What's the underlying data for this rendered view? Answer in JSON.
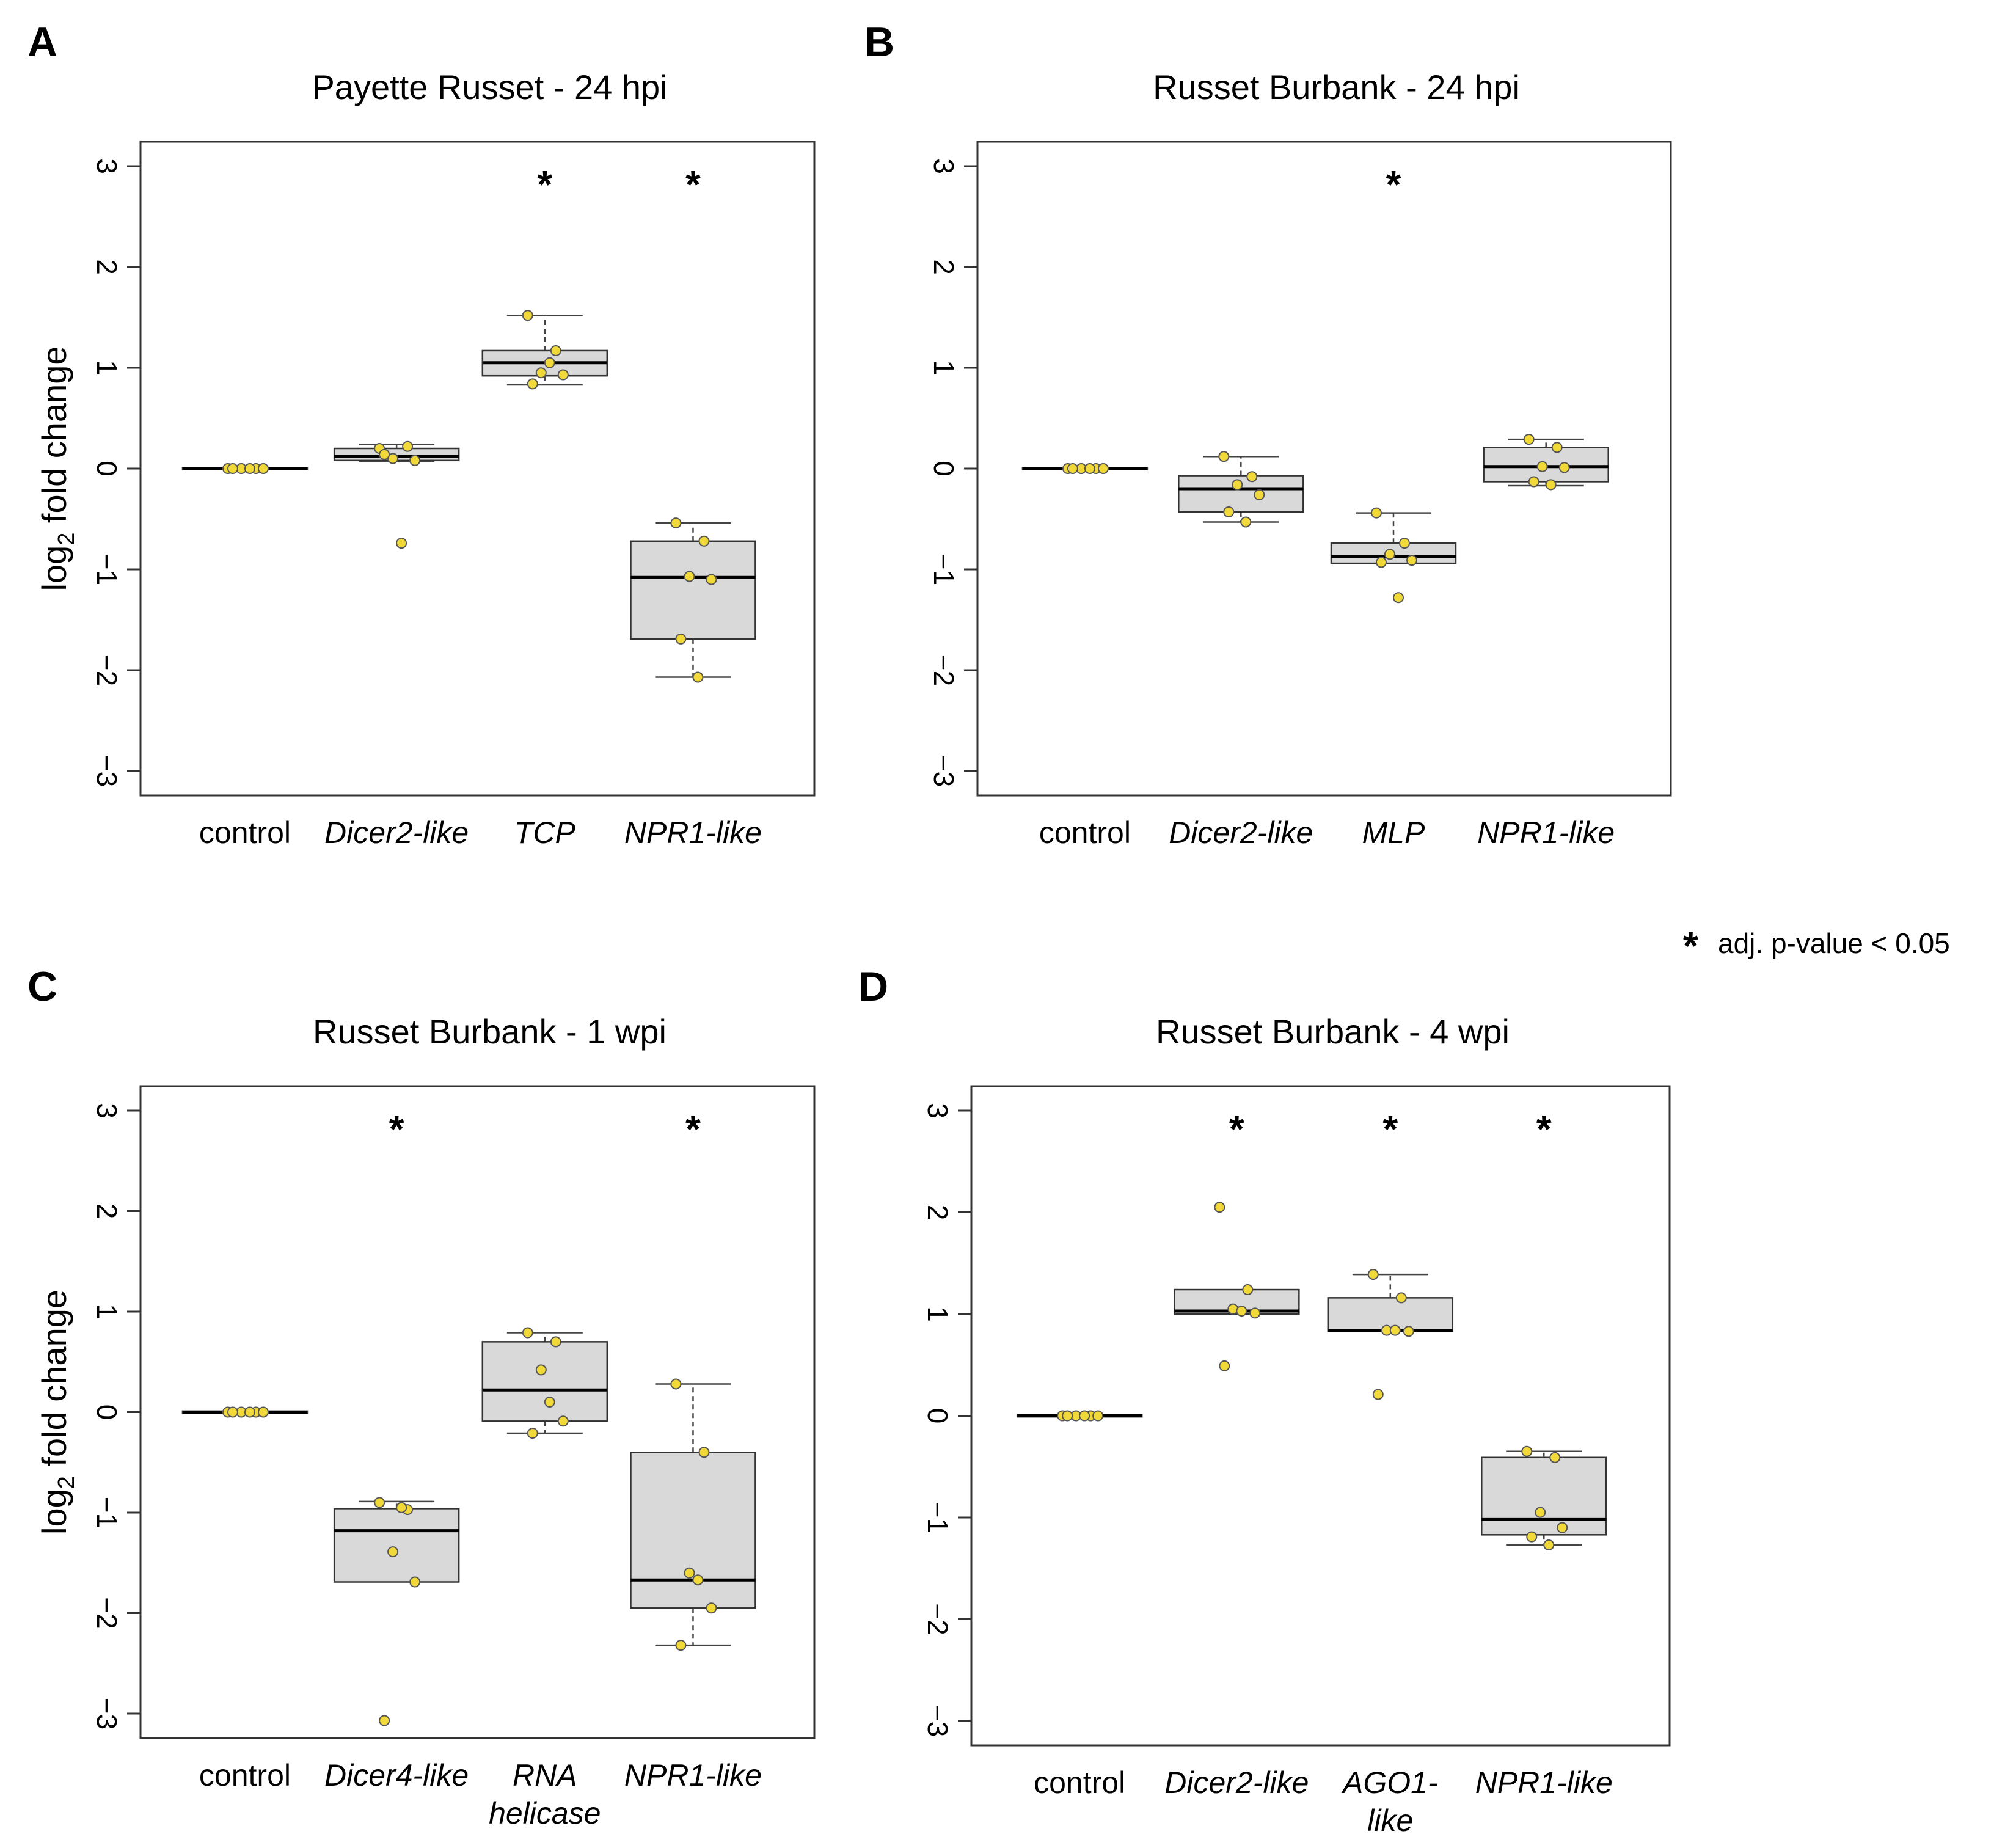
{
  "figure": {
    "legend": {
      "symbol": "*",
      "label": "adj. p-value < 0.05"
    },
    "colors": {
      "box_fill": "#d9d9d9",
      "point_fill": "#f2d93a",
      "point_stroke": "#555555",
      "axis": "#333333",
      "median": "#000000"
    }
  },
  "chart_data": [
    {
      "panel": "A",
      "type": "box",
      "title": "Payette Russet - 24 hpi",
      "ylabel": "log2 fold change",
      "ylim": [
        -3,
        3
      ],
      "yticks": [
        "3",
        "2",
        "1",
        "0",
        "−1",
        "−2",
        "−3"
      ],
      "categories": [
        {
          "label": [
            "control"
          ],
          "italic": false,
          "q1": -0.01,
          "median": 0.0,
          "q3": 0.01,
          "wlo": 0.0,
          "whi": 0.0,
          "points": [
            0,
            0,
            0,
            0,
            0,
            0
          ],
          "sig": false
        },
        {
          "label": [
            "Dicer2-like"
          ],
          "italic": true,
          "q1": 0.08,
          "median": 0.12,
          "q3": 0.2,
          "wlo": 0.07,
          "whi": 0.24,
          "points": [
            0.2,
            0.22,
            0.1,
            0.08,
            0.14,
            -0.74
          ],
          "sig": false
        },
        {
          "label": [
            "TCP"
          ],
          "italic": true,
          "q1": 0.92,
          "median": 1.05,
          "q3": 1.17,
          "wlo": 0.83,
          "whi": 1.52,
          "points": [
            1.52,
            1.17,
            0.95,
            0.93,
            0.84,
            1.05
          ],
          "sig": true
        },
        {
          "label": [
            "NPR1-like"
          ],
          "italic": true,
          "q1": -1.69,
          "median": -1.08,
          "q3": -0.72,
          "wlo": -2.07,
          "whi": -0.54,
          "points": [
            -0.54,
            -0.72,
            -1.07,
            -1.1,
            -1.69,
            -2.07
          ],
          "sig": true
        }
      ]
    },
    {
      "panel": "B",
      "type": "box",
      "title": "Russet Burbank - 24 hpi",
      "ylabel": "",
      "ylim": [
        -3,
        3
      ],
      "yticks": [
        "3",
        "2",
        "1",
        "0",
        "−1",
        "−2",
        "−3"
      ],
      "categories": [
        {
          "label": [
            "control"
          ],
          "italic": false,
          "q1": -0.01,
          "median": 0.0,
          "q3": 0.01,
          "wlo": 0.0,
          "whi": 0.0,
          "points": [
            0,
            0,
            0,
            0,
            0,
            0
          ],
          "sig": false
        },
        {
          "label": [
            "Dicer2-like"
          ],
          "italic": true,
          "q1": -0.43,
          "median": -0.2,
          "q3": -0.07,
          "wlo": -0.53,
          "whi": 0.12,
          "points": [
            0.12,
            -0.08,
            -0.16,
            -0.26,
            -0.43,
            -0.53
          ],
          "sig": false
        },
        {
          "label": [
            "MLP"
          ],
          "italic": true,
          "q1": -0.94,
          "median": -0.87,
          "q3": -0.74,
          "wlo": -0.94,
          "whi": -0.44,
          "points": [
            -0.44,
            -0.74,
            -0.85,
            -0.91,
            -0.93,
            -1.28
          ],
          "sig": true
        },
        {
          "label": [
            "NPR1-like"
          ],
          "italic": true,
          "q1": -0.13,
          "median": 0.02,
          "q3": 0.21,
          "wlo": -0.17,
          "whi": 0.29,
          "points": [
            0.29,
            0.21,
            0.02,
            0.01,
            -0.13,
            -0.16
          ],
          "sig": false
        }
      ]
    },
    {
      "panel": "C",
      "type": "box",
      "title": "Russet Burbank - 1 wpi",
      "ylabel": "log2 fold change",
      "ylim": [
        -3,
        3
      ],
      "yticks": [
        "3",
        "2",
        "1",
        "0",
        "−1",
        "−2",
        "−3"
      ],
      "categories": [
        {
          "label": [
            "control"
          ],
          "italic": false,
          "q1": -0.01,
          "median": 0.0,
          "q3": 0.01,
          "wlo": 0.0,
          "whi": 0.0,
          "points": [
            0,
            0,
            0,
            0,
            0,
            0
          ],
          "sig": false
        },
        {
          "label": [
            "Dicer4-like"
          ],
          "italic": true,
          "q1": -1.69,
          "median": -1.18,
          "q3": -0.96,
          "wlo": -1.69,
          "whi": -0.89,
          "points": [
            -0.9,
            -0.97,
            -1.39,
            -1.69,
            -3.07,
            -0.95
          ],
          "sig": true
        },
        {
          "label": [
            "RNA",
            "helicase"
          ],
          "italic": true,
          "q1": -0.09,
          "median": 0.22,
          "q3": 0.7,
          "wlo": -0.21,
          "whi": 0.79,
          "points": [
            0.79,
            0.7,
            0.42,
            -0.09,
            -0.21,
            0.1
          ],
          "sig": false
        },
        {
          "label": [
            "NPR1-like"
          ],
          "italic": true,
          "q1": -1.95,
          "median": -1.67,
          "q3": -0.4,
          "wlo": -2.32,
          "whi": 0.28,
          "points": [
            0.28,
            -0.4,
            -1.6,
            -1.95,
            -2.32,
            -1.67
          ],
          "sig": true
        }
      ]
    },
    {
      "panel": "D",
      "type": "box",
      "title": "Russet Burbank - 4 wpi",
      "ylabel": "",
      "ylim": [
        -3,
        3
      ],
      "yticks": [
        "3",
        "2",
        "1",
        "0",
        "−1",
        "−2",
        "−3"
      ],
      "categories": [
        {
          "label": [
            "control"
          ],
          "italic": false,
          "q1": -0.01,
          "median": 0.0,
          "q3": 0.01,
          "wlo": 0.0,
          "whi": 0.0,
          "points": [
            0,
            0,
            0,
            0,
            0,
            0
          ],
          "sig": false
        },
        {
          "label": [
            "Dicer2-like"
          ],
          "italic": true,
          "q1": 1.0,
          "median": 1.03,
          "q3": 1.24,
          "wlo": 1.0,
          "whi": 1.24,
          "points": [
            2.05,
            1.24,
            1.05,
            1.01,
            0.49,
            1.03
          ],
          "sig": true
        },
        {
          "label": [
            "AGO1-",
            "like"
          ],
          "italic": true,
          "q1": 0.83,
          "median": 0.84,
          "q3": 1.16,
          "wlo": 0.83,
          "whi": 1.39,
          "points": [
            1.39,
            1.16,
            0.84,
            0.83,
            0.21,
            0.84
          ],
          "sig": true
        },
        {
          "label": [
            "NPR1-like"
          ],
          "italic": true,
          "q1": -1.17,
          "median": -1.02,
          "q3": -0.41,
          "wlo": -1.27,
          "whi": -0.35,
          "points": [
            -0.35,
            -0.41,
            -0.95,
            -1.1,
            -1.19,
            -1.27
          ],
          "sig": true
        }
      ]
    }
  ]
}
